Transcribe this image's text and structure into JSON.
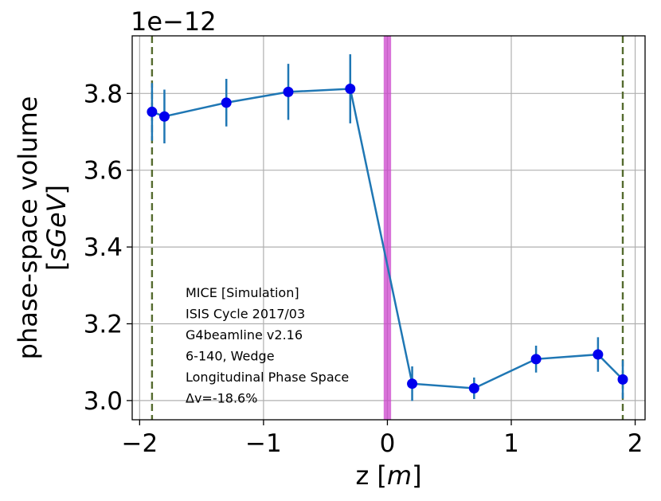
{
  "chart_data": {
    "type": "line",
    "title": "",
    "xlabel_parts": [
      "z [",
      "m",
      "]"
    ],
    "ylabel_line1": "phase-space volume",
    "ylabel_line2_parts": [
      "[",
      "sGeV",
      "]"
    ],
    "y_exponent_label": "1e−12",
    "xlim": [
      -2.06,
      2.08
    ],
    "ylim": [
      2.95,
      3.95
    ],
    "x_ticks": [
      -2,
      -1,
      0,
      1,
      2
    ],
    "x_tick_labels": [
      "−2",
      "−1",
      "0",
      "1",
      "2"
    ],
    "y_ticks": [
      3.0,
      3.2,
      3.4,
      3.6,
      3.8
    ],
    "y_tick_labels": [
      "3.0",
      "3.2",
      "3.4",
      "3.6",
      "3.8"
    ],
    "grid": true,
    "series": [
      {
        "x": [
          -1.9,
          -1.8,
          -1.3,
          -0.8,
          -0.3,
          0.2,
          0.7,
          1.2,
          1.7,
          1.9
        ],
        "y": [
          3.752,
          3.74,
          3.776,
          3.804,
          3.812,
          3.044,
          3.032,
          3.108,
          3.12,
          3.055
        ],
        "yerr": [
          0.075,
          0.07,
          0.062,
          0.073,
          0.09,
          0.045,
          0.028,
          0.035,
          0.045,
          0.05
        ],
        "line_color": "#1f77b4",
        "marker_color": "#0000ee"
      }
    ],
    "vertical_lines": [
      {
        "x": -1.9,
        "style": "dashed",
        "color": "#556b2f"
      },
      {
        "x": 1.9,
        "style": "dashed",
        "color": "#556b2f"
      }
    ],
    "vertical_band": {
      "x_range": [
        -0.03,
        0.03
      ],
      "color": "#cc44cc"
    },
    "annotations": [
      "MICE [Simulation]",
      "ISIS Cycle 2017/03",
      "G4beamline v2.16",
      "6-140, Wedge",
      "Longitudinal Phase Space",
      "Δv=-18.6%"
    ]
  }
}
